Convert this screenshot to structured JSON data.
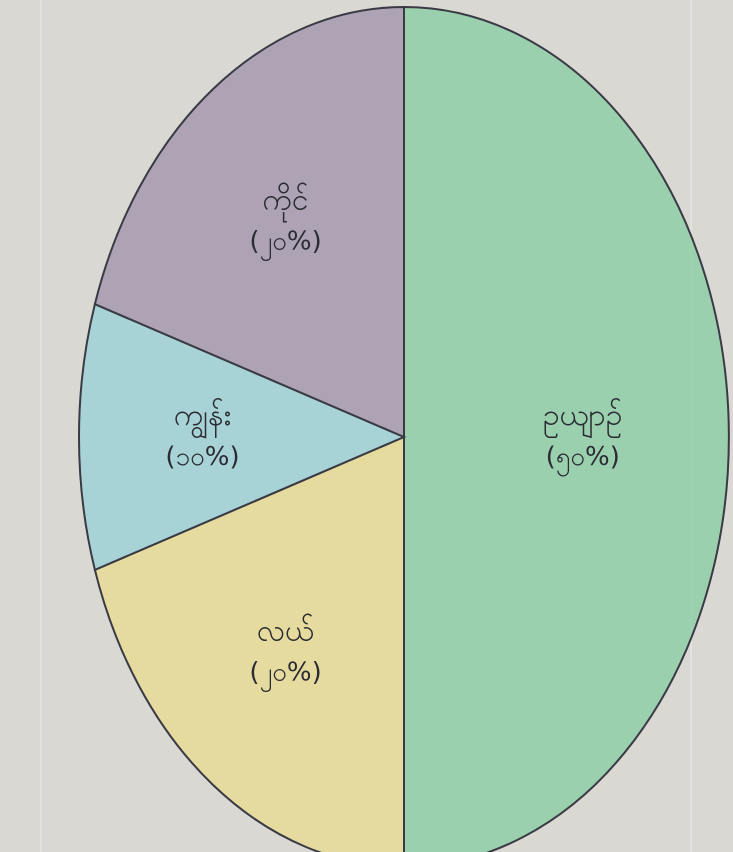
{
  "chart_data": {
    "type": "pie",
    "title": "",
    "start_angle_deg": 0,
    "direction": "clockwise",
    "slices": [
      {
        "label": "ဥယျာဉ်",
        "value_label": "(၅၀%)",
        "value": 50,
        "color": "#8fcfa8"
      },
      {
        "label": "လယ်",
        "value_label": "(၂၀%)",
        "value": 20,
        "color": "#e8dc94"
      },
      {
        "label": "ကျွန်း",
        "value_label": "(၁၀%)",
        "value": 10,
        "color": "#9fd2d6"
      },
      {
        "label": "ကိုင်",
        "value_label": "(၂၀%)",
        "value": 20,
        "color": "#a69aae"
      }
    ]
  },
  "colors": {
    "paper": "#d9d8d3",
    "outline": "#3a3a44",
    "ink": "#2b2b33"
  }
}
